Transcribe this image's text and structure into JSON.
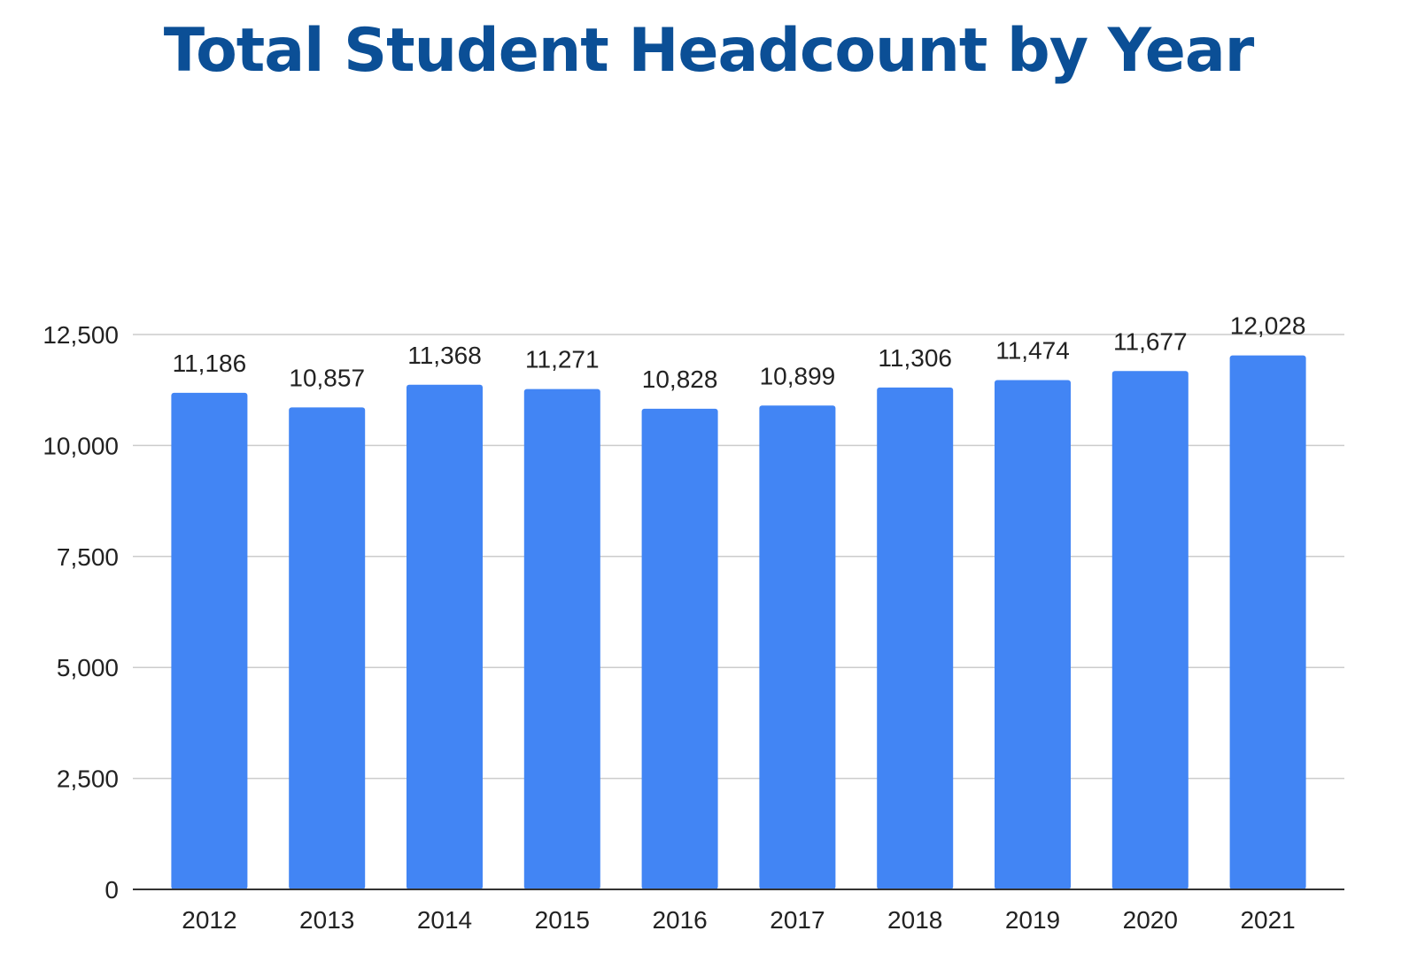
{
  "colors": {
    "title": "#0b4f96",
    "bar": "#4285f4",
    "grid": "#cccccc",
    "axis": "#333333",
    "text": "#222222"
  },
  "chart_data": {
    "type": "bar",
    "title": "Total Student Headcount by Year",
    "xlabel": "",
    "ylabel": "",
    "categories": [
      "2012",
      "2013",
      "2014",
      "2015",
      "2016",
      "2017",
      "2018",
      "2019",
      "2020",
      "2021"
    ],
    "values": [
      11186,
      10857,
      11368,
      11271,
      10828,
      10899,
      11306,
      11474,
      11677,
      12028
    ],
    "data_labels": [
      "11,186",
      "10,857",
      "11,368",
      "11,271",
      "10,828",
      "10,899",
      "11,306",
      "11,474",
      "11,677",
      "12,028"
    ],
    "ylim": [
      0,
      12500
    ],
    "yticks": [
      0,
      2500,
      5000,
      7500,
      10000,
      12500
    ],
    "ytick_labels": [
      "0",
      "2,500",
      "5,000",
      "7,500",
      "10,000",
      "12,500"
    ],
    "grid": true,
    "legend": "none"
  }
}
